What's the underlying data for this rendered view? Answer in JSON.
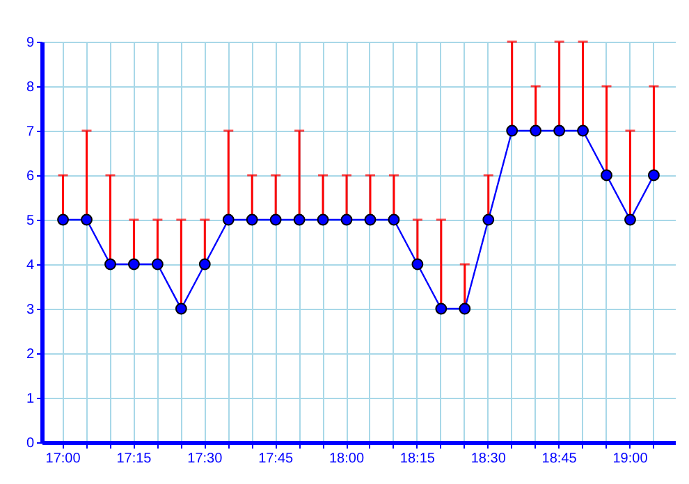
{
  "chart_data": {
    "type": "line",
    "categories": [
      "17:00",
      null,
      null,
      "17:15",
      null,
      null,
      "17:30",
      null,
      null,
      "17:45",
      null,
      null,
      "18:00",
      null,
      null,
      "18:15",
      null,
      null,
      "18:30",
      null,
      null,
      "18:45",
      null,
      null,
      "19:00",
      null
    ],
    "series": [
      {
        "color": "#0000ff",
        "values": [
          5,
          5,
          4,
          4,
          4,
          3,
          4,
          5,
          5,
          5,
          5,
          5,
          5,
          5,
          5,
          4,
          3,
          3,
          5,
          7,
          7,
          7,
          7,
          6,
          5,
          6
        ],
        "errors": [
          [
            5,
            6
          ],
          [
            5,
            7
          ],
          [
            4,
            6
          ],
          [
            4,
            5
          ],
          [
            4,
            5
          ],
          [
            3,
            5
          ],
          [
            4,
            5
          ],
          [
            5,
            7
          ],
          [
            5,
            6
          ],
          [
            5,
            6
          ],
          [
            5,
            7
          ],
          [
            5,
            6
          ],
          [
            5,
            6
          ],
          [
            5,
            6
          ],
          [
            5,
            6
          ],
          [
            4,
            5
          ],
          [
            3,
            5
          ],
          [
            3,
            4
          ],
          [
            5,
            6
          ],
          [
            7,
            9
          ],
          [
            7,
            8
          ],
          [
            7,
            9
          ],
          [
            7,
            9
          ],
          [
            6,
            8
          ],
          [
            5,
            7
          ],
          [
            6,
            8
          ]
        ]
      }
    ],
    "ylim": [
      0,
      9
    ],
    "yticks": [
      0,
      1,
      2,
      3,
      4,
      5,
      6,
      7,
      8,
      9
    ],
    "grid": true,
    "marker": "circle",
    "line_style": "solid"
  }
}
